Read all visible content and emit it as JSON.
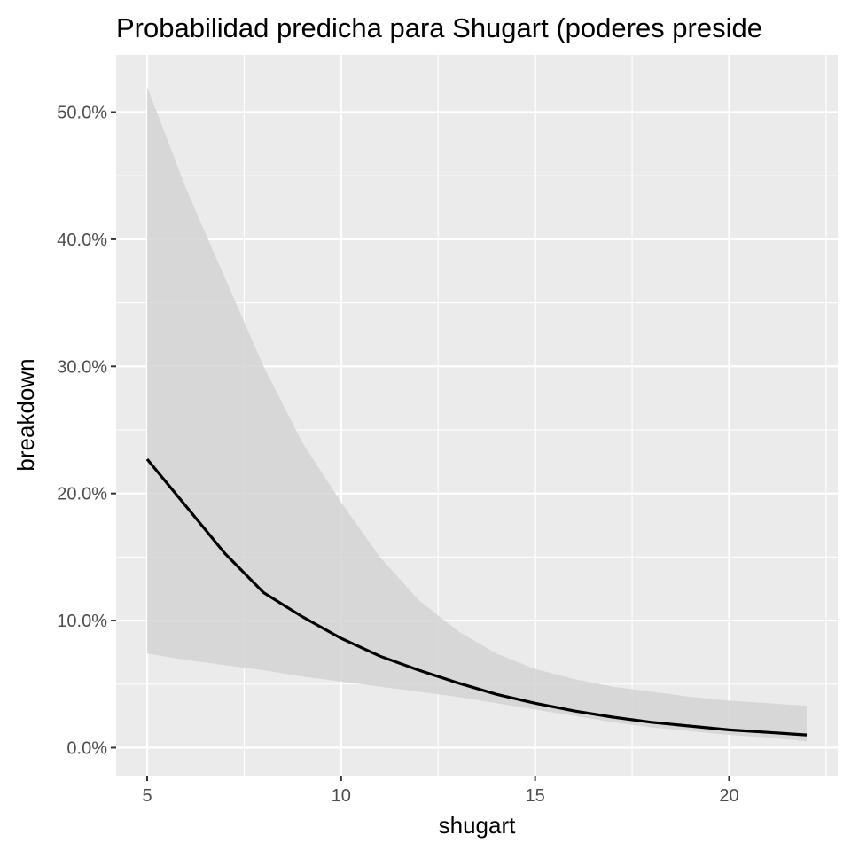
{
  "chart_data": {
    "type": "line",
    "title": "Probabilidad predicha para Shugart (poderes preside",
    "xlabel": "shugart",
    "ylabel": "breakdown",
    "x_ticks": [
      5,
      10,
      15,
      20
    ],
    "y_ticks": [
      "0.0%",
      "10.0%",
      "20.0%",
      "30.0%",
      "40.0%",
      "50.0%"
    ],
    "y_tick_values": [
      0,
      10,
      20,
      30,
      40,
      50
    ],
    "xlim": [
      4.2,
      22.8
    ],
    "ylim": [
      -2.2,
      54.5
    ],
    "grid": true,
    "legend": "none",
    "colors": {
      "panel": "#ebebeb",
      "grid": "#ffffff",
      "ribbon": "#d3d3d3",
      "line": "#000000",
      "tick": "#4d4d4d"
    },
    "series": [
      {
        "x": [
          5,
          6,
          7,
          8,
          9,
          10,
          11,
          12,
          13,
          14,
          15,
          16,
          17,
          18,
          19,
          20,
          21,
          22
        ],
        "values": [
          22.7,
          19.0,
          15.3,
          12.2,
          10.3,
          8.6,
          7.2,
          6.1,
          5.1,
          4.2,
          3.5,
          2.9,
          2.4,
          2.0,
          1.7,
          1.4,
          1.2,
          1.0
        ],
        "lower": [
          7.4,
          6.9,
          6.5,
          6.1,
          5.6,
          5.2,
          4.8,
          4.4,
          4.0,
          3.5,
          3.0,
          2.5,
          2.0,
          1.6,
          1.3,
          1.0,
          0.8,
          0.5
        ],
        "upper": [
          52.0,
          44.0,
          37.0,
          30.0,
          24.0,
          19.3,
          15.0,
          11.6,
          9.2,
          7.4,
          6.2,
          5.4,
          4.8,
          4.4,
          4.0,
          3.7,
          3.5,
          3.3
        ]
      }
    ]
  }
}
